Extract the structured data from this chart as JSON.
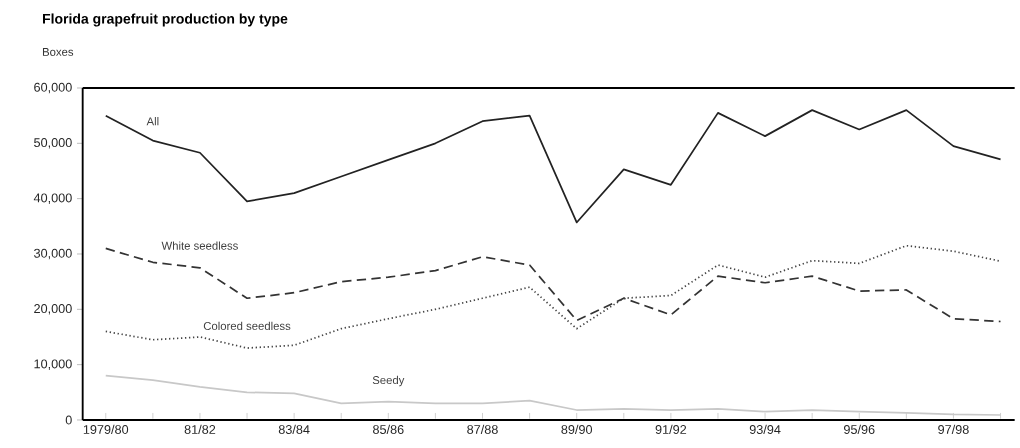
{
  "chart_data": {
    "type": "line",
    "title": "Florida grapefruit production by type",
    "ylabel": "Boxes",
    "categories": [
      "1979/80",
      null,
      "81/82",
      null,
      "83/84",
      null,
      "85/86",
      null,
      "87/88",
      null,
      "89/90",
      null,
      "91/92",
      null,
      "93/94",
      null,
      "95/96",
      null,
      "97/98",
      null
    ],
    "ylim": [
      0,
      60000
    ],
    "yticks": [
      {
        "value": 0,
        "label": "0"
      },
      {
        "value": 10000,
        "label": "10,000"
      },
      {
        "value": 20000,
        "label": "20,000"
      },
      {
        "value": 30000,
        "label": "30,000"
      },
      {
        "value": 40000,
        "label": "40,000"
      },
      {
        "value": 50000,
        "label": "50,000"
      },
      {
        "value": 60000,
        "label": "60,000"
      }
    ],
    "marker": "none",
    "series": [
      {
        "name": "All",
        "color": "#222222",
        "line_style": "solid",
        "values": [
          55000,
          50500,
          48300,
          39500,
          41000,
          44000,
          47000,
          50000,
          54000,
          55000,
          35700,
          45300,
          42500,
          55500,
          51300,
          56000,
          52500,
          56000,
          49500,
          47100
        ]
      },
      {
        "name": "White seedless",
        "color": "#333333",
        "line_style": "dashed",
        "values": [
          31000,
          28500,
          27500,
          22000,
          23000,
          25000,
          25800,
          27000,
          29500,
          28000,
          18000,
          22000,
          19000,
          26000,
          24800,
          26000,
          23300,
          23500,
          18300,
          17800
        ]
      },
      {
        "name": "Colored seedless",
        "color": "#444444",
        "line_style": "dotted",
        "values": [
          16000,
          14500,
          15000,
          13000,
          13500,
          16500,
          18300,
          20000,
          22000,
          24000,
          16500,
          22000,
          22500,
          28000,
          25800,
          28800,
          28300,
          31500,
          30500,
          28700
        ]
      },
      {
        "name": "Seedy",
        "color": "#c8c8c8",
        "line_style": "solid",
        "values": [
          8000,
          7200,
          6000,
          5000,
          4800,
          3000,
          3300,
          3000,
          3000,
          3500,
          1800,
          2000,
          1800,
          2000,
          1500,
          1800,
          1500,
          1300,
          1000,
          900
        ]
      }
    ]
  }
}
